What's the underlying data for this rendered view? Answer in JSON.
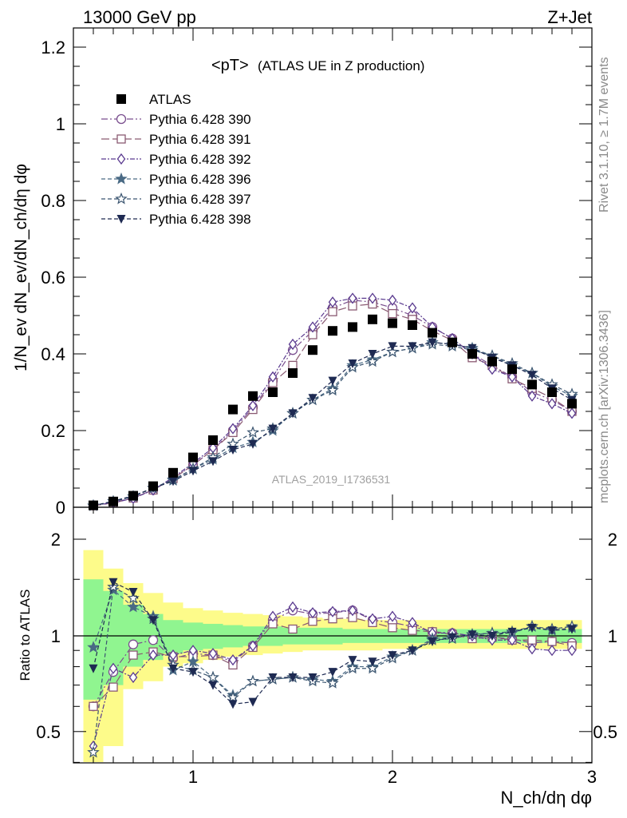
{
  "header": {
    "left": "13000 GeV pp",
    "right": "Z+Jet"
  },
  "side_labels": {
    "rivet": "Rivet 3.1.10, ≥ 1.7M events",
    "mcplots": "mcplots.cern.ch [arXiv:1306.3436]"
  },
  "chart_data": [
    {
      "type": "scatter",
      "title_main": "<pT>",
      "title_sub": " (ATLAS UE in Z production)",
      "watermark": "ATLAS_2019_I1736531",
      "ylabel": "1/N_ev dN_ev/dN_ch/dη dφ",
      "xlabel": "N_ch/dη dφ",
      "xlim": [
        0.4,
        3.0
      ],
      "ylim": [
        0,
        1.25
      ],
      "yticks": [
        "0",
        "0.2",
        "0.4",
        "0.6",
        "0.8",
        "1",
        "1.2"
      ],
      "x": [
        0.5,
        0.6,
        0.7,
        0.8,
        0.9,
        1.0,
        1.1,
        1.2,
        1.3,
        1.4,
        1.5,
        1.6,
        1.7,
        1.8,
        1.9,
        2.0,
        2.1,
        2.2,
        2.3,
        2.4,
        2.5,
        2.6,
        2.7,
        2.8,
        2.9
      ],
      "legend_placement": "top-left",
      "series": [
        {
          "name": "ATLAS",
          "marker": "square-filled",
          "color": "#000000",
          "dash": "",
          "values": [
            0.005,
            0.015,
            0.03,
            0.055,
            0.09,
            0.13,
            0.175,
            0.255,
            0.29,
            0.3,
            0.35,
            0.41,
            0.46,
            0.47,
            0.49,
            0.48,
            0.475,
            0.455,
            0.43,
            0.4,
            0.38,
            0.36,
            0.32,
            0.3,
            0.27
          ]
        },
        {
          "name": "Pythia 6.428 390",
          "marker": "circle-open",
          "color": "#7b4f8f",
          "dash": "8,3,2,3",
          "values": [
            0.005,
            0.012,
            0.025,
            0.045,
            0.075,
            0.11,
            0.15,
            0.2,
            0.26,
            0.33,
            0.41,
            0.46,
            0.52,
            0.54,
            0.535,
            0.52,
            0.5,
            0.47,
            0.44,
            0.4,
            0.37,
            0.34,
            0.3,
            0.28,
            0.25
          ]
        },
        {
          "name": "Pythia 6.428 391",
          "marker": "square-open",
          "color": "#8a5a72",
          "dash": "10,4",
          "values": [
            0.004,
            0.011,
            0.024,
            0.045,
            0.075,
            0.11,
            0.15,
            0.195,
            0.255,
            0.325,
            0.37,
            0.45,
            0.51,
            0.525,
            0.53,
            0.505,
            0.49,
            0.46,
            0.435,
            0.39,
            0.37,
            0.335,
            0.31,
            0.285,
            0.25
          ]
        },
        {
          "name": "Pythia 6.428 392",
          "marker": "diamond-open",
          "color": "#5a3a8f",
          "dash": "6,2,2,2",
          "values": [
            0.005,
            0.012,
            0.023,
            0.045,
            0.078,
            0.115,
            0.155,
            0.205,
            0.265,
            0.34,
            0.425,
            0.47,
            0.535,
            0.545,
            0.545,
            0.54,
            0.52,
            0.47,
            0.44,
            0.4,
            0.36,
            0.34,
            0.29,
            0.27,
            0.245
          ]
        },
        {
          "name": "Pythia 6.428 396",
          "marker": "star-filled",
          "color": "#4a6a85",
          "dash": "5,3",
          "values": [
            0.004,
            0.015,
            0.028,
            0.05,
            0.07,
            0.1,
            0.125,
            0.155,
            0.17,
            0.2,
            0.245,
            0.28,
            0.31,
            0.37,
            0.385,
            0.405,
            0.415,
            0.43,
            0.425,
            0.415,
            0.395,
            0.37,
            0.35,
            0.315,
            0.29
          ]
        },
        {
          "name": "Pythia 6.428 397",
          "marker": "star-open",
          "color": "#3b5570",
          "dash": "5,3",
          "values": [
            0.004,
            0.015,
            0.028,
            0.05,
            0.072,
            0.1,
            0.13,
            0.165,
            0.195,
            0.205,
            0.245,
            0.28,
            0.305,
            0.365,
            0.38,
            0.405,
            0.415,
            0.425,
            0.42,
            0.41,
            0.395,
            0.375,
            0.35,
            0.32,
            0.295
          ]
        },
        {
          "name": "Pythia 6.428 398",
          "marker": "triangle-down-filled",
          "color": "#1e2a52",
          "dash": "5,3",
          "values": [
            0.004,
            0.016,
            0.03,
            0.05,
            0.068,
            0.095,
            0.12,
            0.15,
            0.165,
            0.205,
            0.245,
            0.285,
            0.33,
            0.375,
            0.4,
            0.42,
            0.42,
            0.43,
            0.425,
            0.415,
            0.39,
            0.37,
            0.345,
            0.31,
            0.28
          ]
        }
      ]
    },
    {
      "type": "scatter",
      "ylabel": "Ratio to ATLAS",
      "xlim": [
        0.4,
        3.0
      ],
      "ylim": [
        0.35,
        2.35
      ],
      "yticks": [
        "0.5",
        "1",
        "2"
      ],
      "xticks": [
        "1",
        "2",
        "3"
      ],
      "x": [
        0.5,
        0.6,
        0.7,
        0.8,
        0.9,
        1.0,
        1.1,
        1.2,
        1.3,
        1.4,
        1.5,
        1.6,
        1.7,
        1.8,
        1.9,
        2.0,
        2.1,
        2.2,
        2.3,
        2.4,
        2.5,
        2.6,
        2.7,
        2.8,
        2.9
      ],
      "band_yellow": {
        "lo": [
          0.38,
          0.45,
          0.68,
          0.72,
          0.8,
          0.82,
          0.84,
          0.86,
          0.87,
          0.88,
          0.89,
          0.9,
          0.9,
          0.9,
          0.9,
          0.91,
          0.91,
          0.91,
          0.91,
          0.91,
          0.91,
          0.91,
          0.91,
          0.91,
          0.91
        ],
        "hi": [
          1.85,
          1.62,
          1.46,
          1.36,
          1.27,
          1.22,
          1.2,
          1.18,
          1.17,
          1.16,
          1.15,
          1.14,
          1.13,
          1.13,
          1.12,
          1.12,
          1.12,
          1.12,
          1.12,
          1.12,
          1.12,
          1.12,
          1.12,
          1.12,
          1.12
        ]
      },
      "band_green": {
        "lo": [
          0.63,
          0.7,
          0.8,
          0.84,
          0.88,
          0.9,
          0.91,
          0.92,
          0.93,
          0.93,
          0.94,
          0.94,
          0.94,
          0.95,
          0.95,
          0.95,
          0.95,
          0.95,
          0.95,
          0.95,
          0.95,
          0.95,
          0.95,
          0.95,
          0.95
        ],
        "hi": [
          1.5,
          1.38,
          1.25,
          1.17,
          1.12,
          1.1,
          1.09,
          1.08,
          1.07,
          1.07,
          1.06,
          1.06,
          1.06,
          1.05,
          1.05,
          1.05,
          1.05,
          1.05,
          1.05,
          1.05,
          1.05,
          1.05,
          1.05,
          1.05,
          1.05
        ]
      },
      "series": [
        {
          "name": "Pythia 6.428 390",
          "values": [
            0.6,
            0.77,
            0.94,
            0.97,
            0.85,
            0.88,
            0.87,
            0.83,
            0.93,
            1.12,
            1.2,
            1.17,
            1.18,
            1.2,
            1.12,
            1.1,
            1.07,
            1.03,
            1.02,
            1.0,
            0.99,
            0.98,
            0.95,
            0.96,
            0.95
          ]
        },
        {
          "name": "Pythia 6.428 391",
          "values": [
            0.6,
            0.69,
            0.87,
            0.89,
            0.86,
            0.86,
            0.87,
            0.81,
            0.92,
            1.09,
            1.05,
            1.11,
            1.13,
            1.14,
            1.1,
            1.06,
            1.04,
            1.03,
            1.01,
            0.98,
            0.99,
            0.97,
            0.97,
            0.96,
            0.93
          ]
        },
        {
          "name": "Pythia 6.428 392",
          "values": [
            0.45,
            0.79,
            0.74,
            0.87,
            0.87,
            0.9,
            0.88,
            0.84,
            0.93,
            1.15,
            1.23,
            1.18,
            1.19,
            1.2,
            1.13,
            1.15,
            1.1,
            1.02,
            1.02,
            1.0,
            0.97,
            0.97,
            0.91,
            0.9,
            0.9
          ]
        },
        {
          "name": "Pythia 6.428 396",
          "values": [
            0.92,
            1.39,
            1.23,
            1.15,
            0.78,
            0.83,
            0.74,
            0.65,
            0.72,
            0.73,
            0.74,
            0.73,
            0.72,
            0.8,
            0.8,
            0.86,
            0.9,
            0.98,
            0.99,
            1.01,
            1.02,
            1.02,
            1.07,
            1.04,
            1.06
          ]
        },
        {
          "name": "Pythia 6.428 397",
          "values": [
            0.43,
            1.42,
            1.31,
            1.13,
            0.81,
            0.78,
            0.74,
            0.64,
            0.72,
            0.73,
            0.74,
            0.72,
            0.71,
            0.79,
            0.79,
            0.85,
            0.9,
            0.97,
            0.98,
            1.01,
            1.02,
            1.03,
            1.07,
            1.05,
            1.07
          ]
        },
        {
          "name": "Pythia 6.428 398",
          "values": [
            0.79,
            1.47,
            1.37,
            1.12,
            0.79,
            0.77,
            0.7,
            0.61,
            0.62,
            0.74,
            0.74,
            0.74,
            0.77,
            0.84,
            0.83,
            0.87,
            0.9,
            0.96,
            0.99,
            1.01,
            1.0,
            1.03,
            1.06,
            1.04,
            1.05
          ]
        }
      ]
    }
  ]
}
